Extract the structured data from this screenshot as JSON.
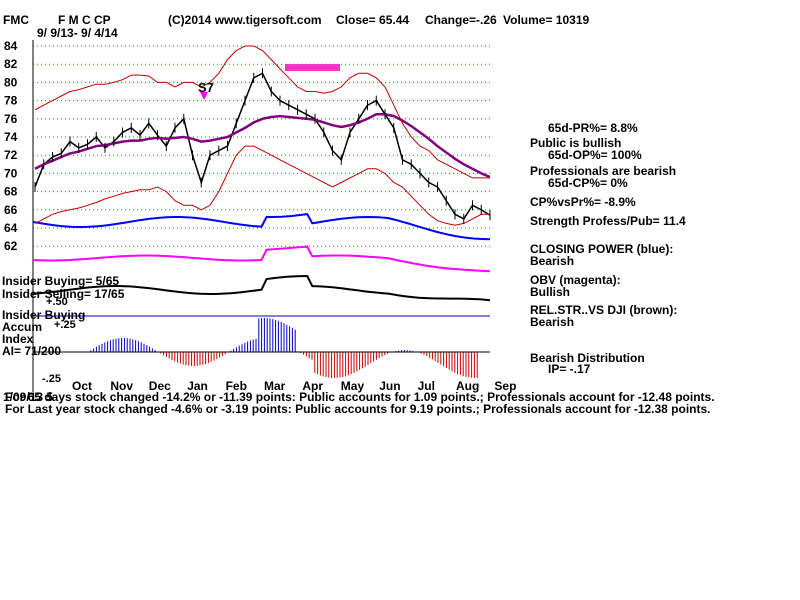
{
  "header": {
    "ticker": "FMC",
    "company": "F M C CP",
    "copyright": "(C)2014 www.tigersoft.com",
    "close": "Close=  65.44",
    "change": "Change=-.26",
    "volume": "Volume= 10319",
    "date_range": "9/ 9/13- 9/ 4/14"
  },
  "right_panel": {
    "pr": "65d-PR%= 8.8%",
    "public": "Public is bullish",
    "op": "65d-OP%= 100%",
    "professionals": "Professionals are bearish",
    "cp": "65d-CP%= 0%",
    "cpvspr": "CP%vsPr%= -8.9%",
    "strength": "Strength Profess/Pub= 11.4",
    "closing_power_title": "CLOSING POWER (blue):",
    "closing_power_value": "Bearish",
    "obv_title": "OBV (magenta):",
    "obv_value": "Bullish",
    "relstr_title": "REL.STR..VS DJI (brown):",
    "relstr_value": "Bearish",
    "distribution_title": "Bearish Distribution",
    "ip": "IP= -.17"
  },
  "left_panel": {
    "insider_buying": "Insider Buying= 5/65",
    "insider_selling": "Insider Selling= 17/65",
    "plus50": "+.50",
    "insider_buying_label": "Insider Buying",
    "accum": "Accum",
    "plus25": "+.25",
    "index": "Index",
    "ai": "AI= 71/200",
    "minus25": "-.25"
  },
  "signal": {
    "label": "S7"
  },
  "footer": {
    "line1": "For 65 days stock changed -14.2% or -11.39 points:  Public accounts for  1.09 points.;  Professionals account for -12.48 points.",
    "line1_overlap": "1/09/13 5",
    "line2": "For Last year stock changed -4.6% or -3.19 points:  Public accounts for  9.19 points.;  Professionals account for -12.38 points."
  },
  "chart_data": {
    "type": "line",
    "y_ticks": [
      84,
      82,
      80,
      78,
      76,
      74,
      72,
      70,
      68,
      66,
      64,
      62
    ],
    "ylim": [
      61,
      85
    ],
    "x_tick_labels": [
      "Oct",
      "Nov",
      "Dec",
      "Jan",
      "Feb",
      "Mar",
      "Apr",
      "May",
      "Jun",
      "Jul",
      "Aug",
      "Sep"
    ],
    "grid": true,
    "series": [
      {
        "values": [
          68.5,
          71.0,
          71.8,
          72.2,
          73.5,
          72.8,
          73.2,
          74.0,
          72.8,
          73.5,
          74.5,
          75.0,
          74.2,
          75.5,
          74.2,
          73.0,
          75.0,
          76.0,
          72.0,
          69.0,
          72.0,
          72.5,
          73.0,
          75.5,
          78.0,
          80.5,
          81.0,
          79.0,
          78.0,
          77.5,
          77.0,
          76.5,
          76.0,
          74.5,
          72.5,
          71.5,
          74.5,
          76.0,
          77.5,
          78.0,
          76.5,
          75.0,
          71.5,
          71.0,
          70.0,
          69.0,
          68.5,
          67.0,
          65.5,
          65.0,
          66.5,
          66.0,
          65.4
        ]
      },
      {
        "values": [
          70.5,
          71.0,
          71.4,
          71.8,
          72.2,
          72.4,
          72.7,
          73.0,
          73.1,
          73.3,
          73.5,
          73.6,
          73.6,
          73.8,
          73.9,
          73.8,
          73.9,
          74.0,
          73.8,
          73.5,
          73.6,
          73.8,
          74.0,
          74.5,
          75.0,
          75.6,
          76.0,
          76.2,
          76.3,
          76.2,
          76.1,
          76.0,
          75.9,
          75.6,
          75.3,
          75.1,
          75.3,
          75.6,
          76.0,
          76.5,
          76.5,
          76.3,
          75.8,
          75.2,
          74.5,
          73.8,
          73.0,
          72.3,
          71.6,
          71.0,
          70.5,
          70.0,
          69.6
        ]
      },
      {
        "values": [
          77.0,
          77.5,
          78.0,
          78.5,
          79.0,
          79.2,
          79.5,
          79.8,
          79.8,
          80.0,
          80.3,
          80.8,
          80.8,
          80.7,
          80.0,
          80.0,
          79.5,
          80.0,
          80.0,
          79.5,
          80.0,
          81.0,
          82.5,
          83.5,
          84.0,
          84.0,
          83.5,
          82.5,
          81.5,
          80.5,
          79.5,
          79.0,
          79.0,
          78.8,
          79.0,
          79.5,
          80.5,
          81.0,
          81.0,
          80.5,
          79.5,
          77.5,
          75.5,
          74.0,
          73.0,
          72.5,
          71.5,
          71.0,
          70.5,
          70.0,
          69.5,
          69.5,
          69.5
        ]
      },
      {
        "values": [
          64.5,
          65.0,
          65.5,
          65.8,
          66.0,
          66.2,
          66.5,
          66.8,
          67.2,
          67.5,
          67.8,
          68.0,
          68.2,
          68.2,
          68.5,
          68.0,
          67.0,
          66.5,
          66.5,
          66.0,
          66.5,
          68.0,
          70.0,
          72.0,
          73.0,
          73.0,
          72.5,
          72.0,
          71.5,
          71.0,
          70.5,
          70.0,
          69.5,
          69.0,
          68.5,
          69.0,
          69.5,
          70.0,
          70.5,
          70.5,
          70.0,
          69.0,
          68.5,
          67.5,
          66.5,
          65.5,
          64.8,
          64.5,
          64.3,
          64.5,
          65.0,
          65.5,
          65.5
        ]
      }
    ]
  }
}
